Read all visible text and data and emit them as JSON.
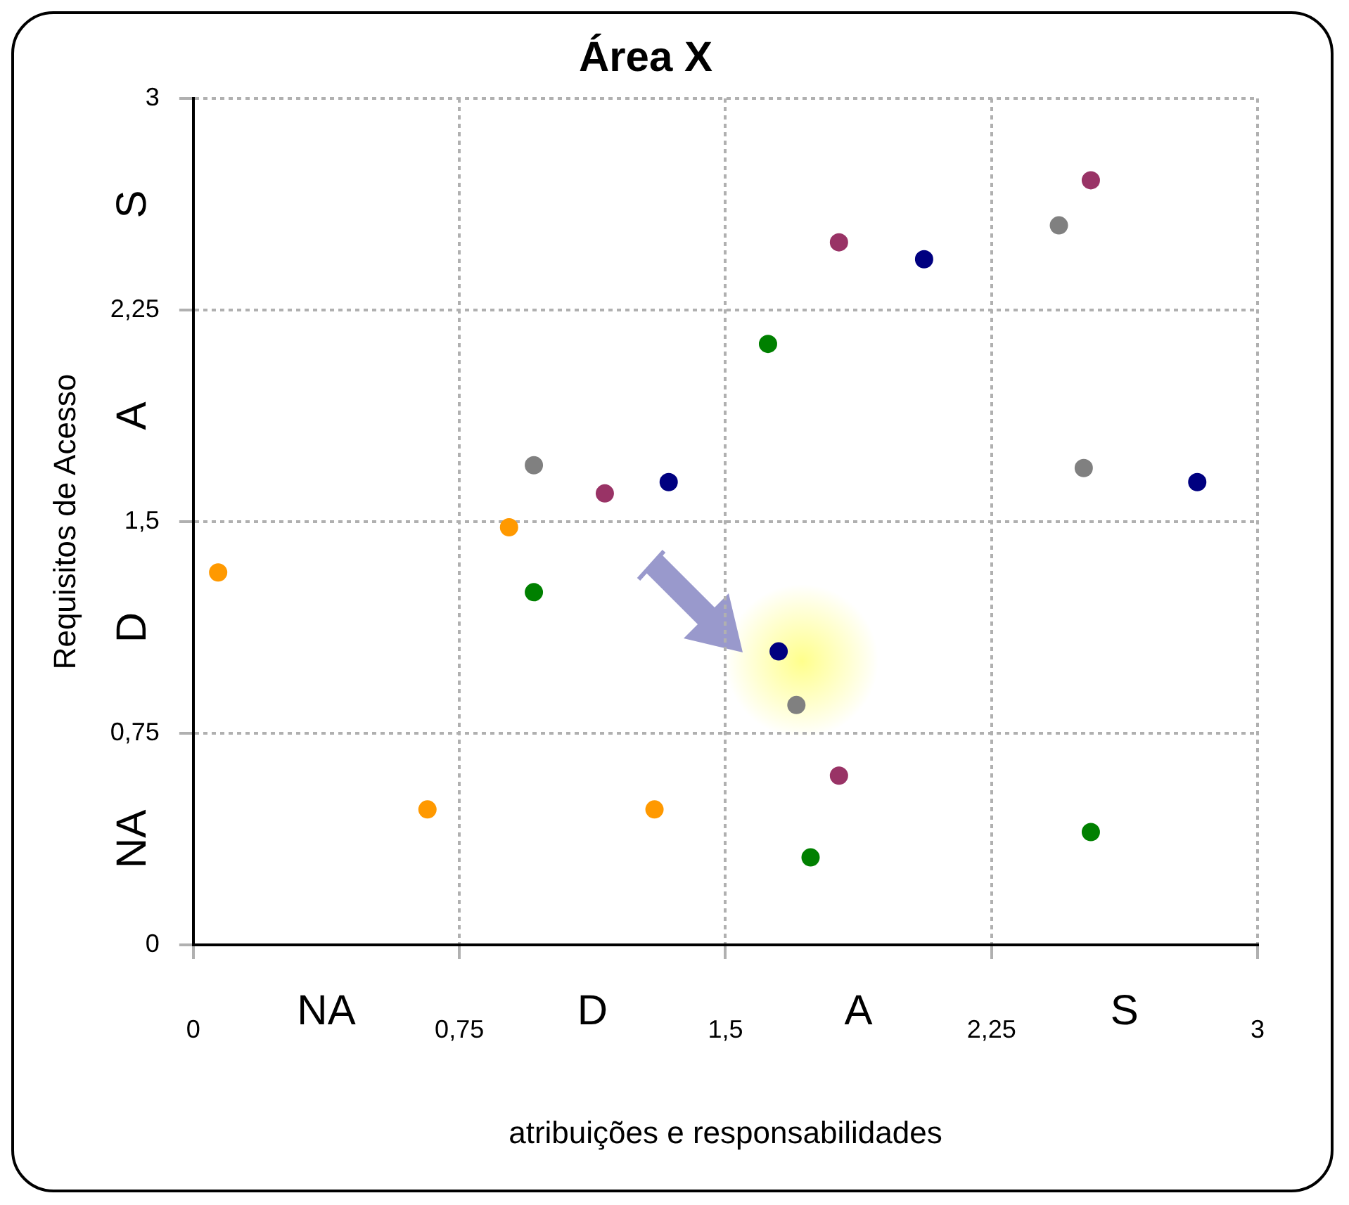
{
  "chart_data": {
    "type": "scatter",
    "title": "Área X",
    "xlabel": "atribuições e responsabilidades",
    "ylabel": "Requisitos de Acesso",
    "xlim": [
      0,
      3
    ],
    "ylim": [
      0,
      3
    ],
    "xticks": [
      0,
      {
        "value": 0.75,
        "label": "0,75"
      },
      {
        "value": 1.5,
        "label": "1,5"
      },
      {
        "value": 2.25,
        "label": "2,25"
      },
      3
    ],
    "yticks": [
      0,
      {
        "value": 0.75,
        "label": "0,75"
      },
      {
        "value": 1.5,
        "label": "1,5"
      },
      {
        "value": 2.25,
        "label": "2,25"
      },
      3
    ],
    "grid": true,
    "marker": "circle",
    "annotations": [
      "NA",
      "D",
      "A",
      "S",
      "S",
      "A",
      "D",
      "NA"
    ],
    "series": [
      {
        "color": "#ff9900",
        "x": [
          0.07,
          0.66,
          0.89,
          1.3
        ],
        "values": [
          1.32,
          0.48,
          1.48,
          0.48
        ]
      },
      {
        "color": "#008000",
        "x": [
          0.96,
          1.62,
          1.74,
          2.53
        ],
        "values": [
          1.25,
          2.13,
          0.31,
          0.4
        ]
      },
      {
        "color": "#808080",
        "x": [
          0.96,
          2.44,
          2.51,
          1.7
        ],
        "values": [
          1.7,
          2.55,
          1.69,
          0.85
        ]
      },
      {
        "color": "#993366",
        "x": [
          1.16,
          1.82,
          2.53,
          1.82
        ],
        "values": [
          1.6,
          2.49,
          2.71,
          0.6
        ]
      },
      {
        "color": "#000080",
        "x": [
          1.34,
          2.06,
          2.83,
          1.65
        ],
        "values": [
          1.64,
          2.43,
          1.64,
          1.04
        ]
      }
    ]
  }
}
